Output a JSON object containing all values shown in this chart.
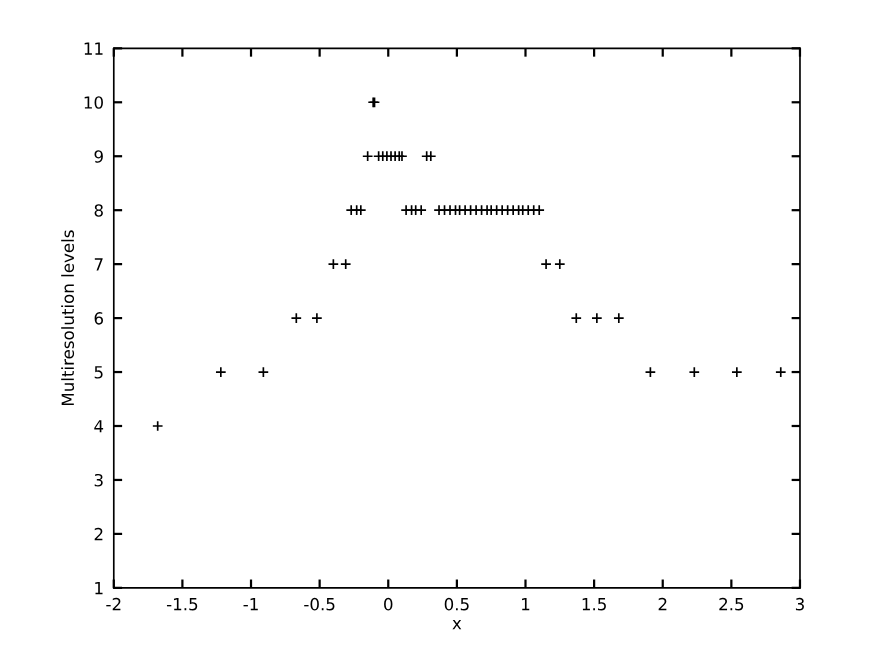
{
  "chart_data": {
    "type": "scatter",
    "xlabel": "x",
    "ylabel": "Multiresolution levels",
    "xlim": [
      -2,
      3
    ],
    "xticks": [
      -2,
      -1.5,
      -1,
      -0.5,
      0,
      0.5,
      1,
      1.5,
      2,
      2.5,
      3
    ],
    "ylim": [
      1,
      11
    ],
    "yticks": [
      1,
      2,
      3,
      4,
      5,
      6,
      7,
      8,
      9,
      10,
      11
    ],
    "marker": "cross",
    "grid": false,
    "series": [
      {
        "color": "#000000",
        "x": [
          -1.68,
          -1.22,
          -0.91,
          1.91,
          2.23,
          2.54,
          2.86,
          -0.67,
          -0.52,
          1.37,
          1.52,
          1.68,
          -0.4,
          -0.31,
          1.15,
          1.25,
          -0.27,
          -0.23,
          -0.2,
          0.13,
          0.17,
          0.2,
          0.24,
          0.37,
          0.41,
          0.45,
          0.49,
          0.52,
          0.56,
          0.6,
          0.64,
          0.68,
          0.72,
          0.75,
          0.79,
          0.83,
          0.87,
          0.91,
          0.95,
          0.98,
          1.02,
          1.06,
          1.1,
          -0.15,
          -0.07,
          -0.04,
          -0.01,
          0.02,
          0.05,
          0.08,
          0.1,
          0.28,
          0.31,
          -0.11,
          -0.1
        ],
        "values": [
          4,
          5,
          5,
          5,
          5,
          5,
          5,
          6,
          6,
          6,
          6,
          6,
          7,
          7,
          7,
          7,
          8,
          8,
          8,
          8,
          8,
          8,
          8,
          8,
          8,
          8,
          8,
          8,
          8,
          8,
          8,
          8,
          8,
          8,
          8,
          8,
          8,
          8,
          8,
          8,
          8,
          8,
          8,
          9,
          9,
          9,
          9,
          9,
          9,
          9,
          9,
          9,
          9,
          10,
          10
        ]
      }
    ]
  }
}
